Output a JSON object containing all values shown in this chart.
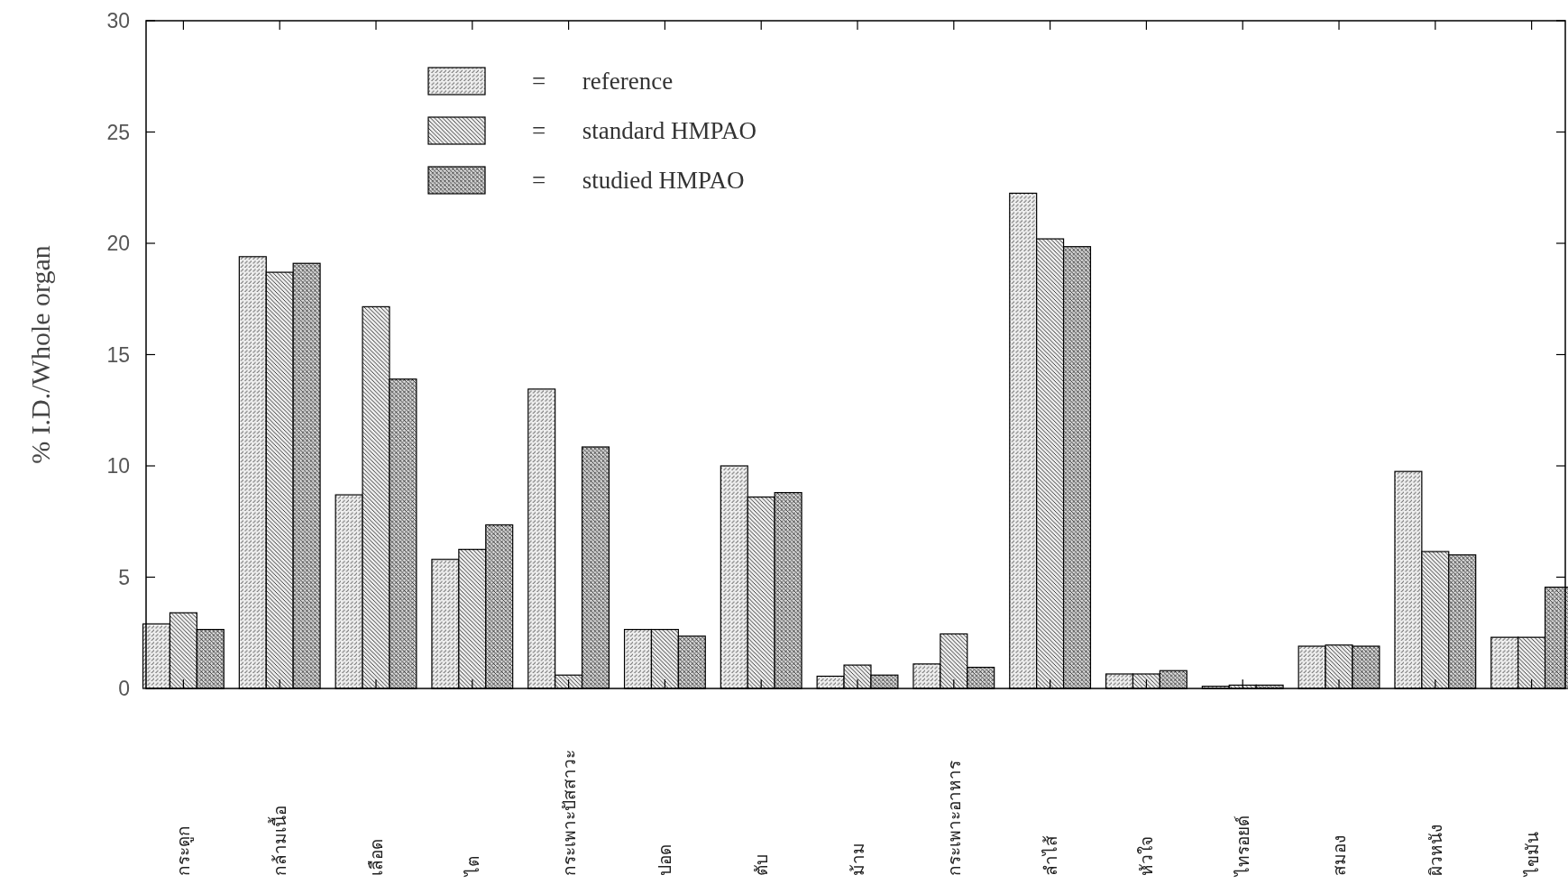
{
  "chart_data": {
    "type": "bar",
    "ylabel": "% I.D./Whole organ",
    "categories": [
      "กระดูก",
      "กล้ามเนื้อ",
      "เลือด",
      "ไต",
      "กระเพาะปัสสาวะ",
      "ปอด",
      "ตับ",
      "ม้าม",
      "กระเพาะอาหาร",
      "ลำไส้",
      "หัวใจ",
      "ไทรอยด์",
      "สมอง",
      "ผิวหนัง",
      "ไขมัน"
    ],
    "series": [
      {
        "name": "= reference",
        "color": "#000000",
        "values": [
          2.9,
          19.4,
          8.7,
          5.8,
          13.45,
          2.65,
          10.0,
          0.55,
          1.1,
          22.25,
          0.65,
          0.1,
          1.9,
          9.75,
          2.3
        ]
      },
      {
        "name": "= standard HMPAO",
        "color": "#000000",
        "values": [
          3.4,
          18.7,
          17.15,
          6.25,
          0.6,
          2.65,
          8.6,
          1.05,
          2.45,
          20.2,
          0.65,
          0.15,
          1.95,
          6.15,
          2.3
        ]
      },
      {
        "name": "= studied HMPAO",
        "color": "#000000",
        "values": [
          2.65,
          19.1,
          13.9,
          7.35,
          10.85,
          2.35,
          8.8,
          0.6,
          0.95,
          19.85,
          0.8,
          0.15,
          1.9,
          6.0,
          4.55
        ]
      }
    ],
    "ylim": [
      0,
      30
    ],
    "yticks": [
      0,
      5,
      10,
      15,
      20,
      25,
      30
    ],
    "legend": "top",
    "grid": false
  }
}
